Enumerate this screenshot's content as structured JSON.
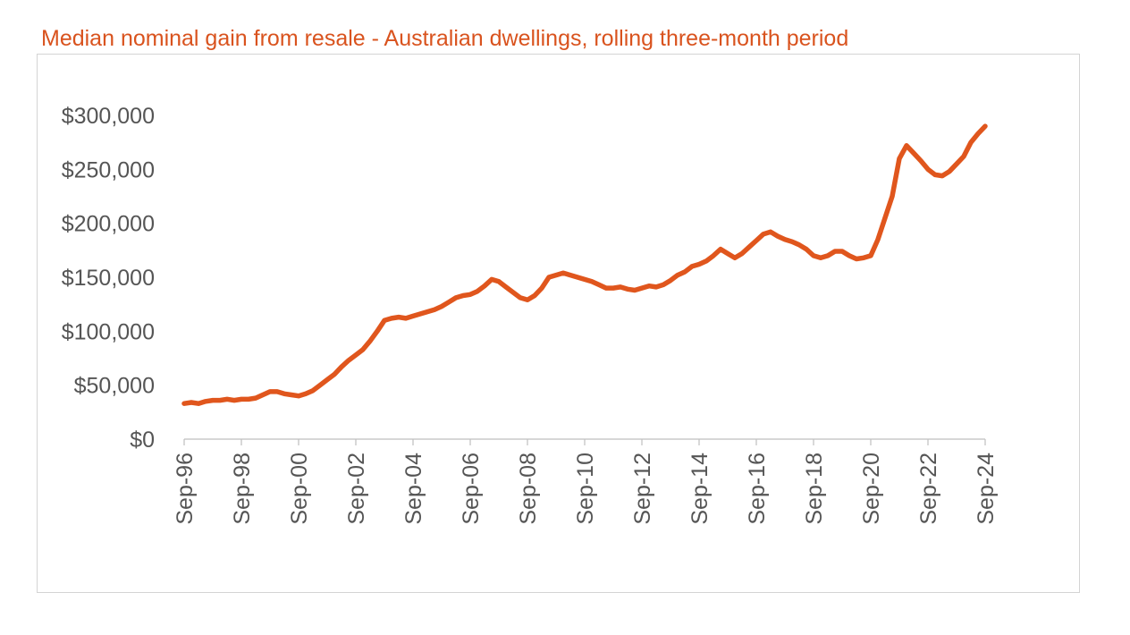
{
  "colors": {
    "title": "#d9531e",
    "line": "#e0561d",
    "axis": "#bfbfbf",
    "tick_text": "#555555",
    "frame": "#d4d4d4"
  },
  "chart_data": {
    "type": "line",
    "title": "Median nominal gain from resale - Australian dwellings, rolling three-month period",
    "xlabel": "",
    "ylabel": "",
    "x_start": "Sep-96",
    "x_end": "Sep-24",
    "x_ticks": [
      "Sep-96",
      "Sep-98",
      "Sep-00",
      "Sep-02",
      "Sep-04",
      "Sep-06",
      "Sep-08",
      "Sep-10",
      "Sep-12",
      "Sep-14",
      "Sep-16",
      "Sep-18",
      "Sep-20",
      "Sep-22",
      "Sep-24"
    ],
    "y_ticks": [
      "$0",
      "$50,000",
      "$100,000",
      "$150,000",
      "$200,000",
      "$250,000",
      "$300,000"
    ],
    "ylim": [
      0,
      300000
    ],
    "grid": false,
    "legend": "none",
    "series": [
      {
        "x": [
          "Sep-96",
          "Dec-96",
          "Mar-97",
          "Jun-97",
          "Sep-97",
          "Dec-97",
          "Mar-98",
          "Jun-98",
          "Sep-98",
          "Dec-98",
          "Mar-99",
          "Jun-99",
          "Sep-99",
          "Dec-99",
          "Mar-00",
          "Jun-00",
          "Sep-00",
          "Dec-00",
          "Mar-01",
          "Jun-01",
          "Sep-01",
          "Dec-01",
          "Mar-02",
          "Jun-02",
          "Sep-02",
          "Dec-02",
          "Mar-03",
          "Jun-03",
          "Sep-03",
          "Dec-03",
          "Mar-04",
          "Jun-04",
          "Sep-04",
          "Dec-04",
          "Mar-05",
          "Jun-05",
          "Sep-05",
          "Dec-05",
          "Mar-06",
          "Jun-06",
          "Sep-06",
          "Dec-06",
          "Mar-07",
          "Jun-07",
          "Sep-07",
          "Dec-07",
          "Mar-08",
          "Jun-08",
          "Sep-08",
          "Dec-08",
          "Mar-09",
          "Jun-09",
          "Sep-09",
          "Dec-09",
          "Mar-10",
          "Jun-10",
          "Sep-10",
          "Dec-10",
          "Mar-11",
          "Jun-11",
          "Sep-11",
          "Dec-11",
          "Mar-12",
          "Jun-12",
          "Sep-12",
          "Dec-12",
          "Mar-13",
          "Jun-13",
          "Sep-13",
          "Dec-13",
          "Mar-14",
          "Jun-14",
          "Sep-14",
          "Dec-14",
          "Mar-15",
          "Jun-15",
          "Sep-15",
          "Dec-15",
          "Mar-16",
          "Jun-16",
          "Sep-16",
          "Dec-16",
          "Mar-17",
          "Jun-17",
          "Sep-17",
          "Dec-17",
          "Mar-18",
          "Jun-18",
          "Sep-18",
          "Dec-18",
          "Mar-19",
          "Jun-19",
          "Sep-19",
          "Dec-19",
          "Mar-20",
          "Jun-20",
          "Sep-20",
          "Dec-20",
          "Mar-21",
          "Jun-21",
          "Sep-21",
          "Dec-21",
          "Mar-22",
          "Jun-22",
          "Sep-22",
          "Dec-22",
          "Mar-23",
          "Jun-23",
          "Sep-23",
          "Dec-23",
          "Mar-24",
          "Jun-24",
          "Sep-24"
        ],
        "values": [
          33000,
          34000,
          33000,
          35000,
          36000,
          36000,
          37000,
          36000,
          37000,
          37000,
          38000,
          41000,
          44000,
          44000,
          42000,
          41000,
          40000,
          42000,
          45000,
          50000,
          55000,
          60000,
          67000,
          73000,
          78000,
          83000,
          91000,
          100000,
          110000,
          112000,
          113000,
          112000,
          114000,
          116000,
          118000,
          120000,
          123000,
          127000,
          131000,
          133000,
          134000,
          137000,
          142000,
          148000,
          146000,
          141000,
          136000,
          131000,
          129000,
          133000,
          140000,
          150000,
          152000,
          154000,
          152000,
          150000,
          148000,
          146000,
          143000,
          140000,
          140000,
          141000,
          139000,
          138000,
          140000,
          142000,
          141000,
          143000,
          147000,
          152000,
          155000,
          160000,
          162000,
          165000,
          170000,
          176000,
          172000,
          168000,
          172000,
          178000,
          184000,
          190000,
          192000,
          188000,
          185000,
          183000,
          180000,
          176000,
          170000,
          168000,
          170000,
          174000,
          174000,
          170000,
          167000,
          168000,
          170000,
          185000,
          205000,
          225000,
          260000,
          272000,
          265000,
          258000,
          250000,
          245000,
          244000,
          248000,
          255000,
          262000,
          275000,
          283000,
          290000
        ]
      }
    ]
  }
}
